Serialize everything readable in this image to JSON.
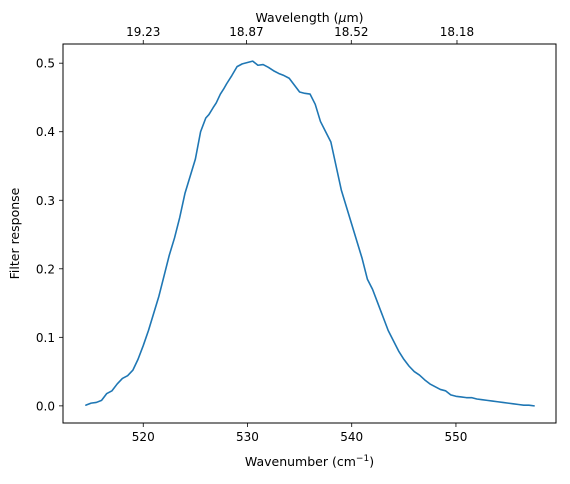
{
  "chart_data": {
    "type": "line",
    "title": "",
    "xlabel": "Wavenumber (cm",
    "xlabel_superscript": "−1",
    "xlabel_suffix": ")",
    "ylabel": "Filter response",
    "top_label_prefix": "Wavelength (",
    "top_label_mu": "μ",
    "top_label_suffix": "m)",
    "xlim": [
      512.3,
      559.6
    ],
    "ylim": [
      -0.025,
      0.528
    ],
    "x_ticks": [
      520,
      530,
      540,
      550
    ],
    "x_tick_labels": [
      "520",
      "530",
      "540",
      "550"
    ],
    "y_ticks": [
      0.0,
      0.1,
      0.2,
      0.3,
      0.4,
      0.5
    ],
    "y_tick_labels": [
      "0.0",
      "0.1",
      "0.2",
      "0.3",
      "0.4",
      "0.5"
    ],
    "top_tick_positions": [
      520.0,
      529.9,
      539.96,
      550.1
    ],
    "top_tick_labels": [
      "19.23",
      "18.87",
      "18.52",
      "18.18"
    ],
    "grid": false,
    "line_color": "#1f77b4",
    "series": [
      {
        "x": [
          514.5,
          515.0,
          515.5,
          516.0,
          516.5,
          517.0,
          517.5,
          518.0,
          518.5,
          519.0,
          519.5,
          520.0,
          520.5,
          521.0,
          521.5,
          522.0,
          522.5,
          523.0,
          523.5,
          524.0,
          524.5,
          525.0,
          525.5,
          526.0,
          526.3,
          526.7,
          527.0,
          527.4,
          527.7,
          528.0,
          528.5,
          529.0,
          529.5,
          530.0,
          530.5,
          531.0,
          531.5,
          532.0,
          532.5,
          533.0,
          533.5,
          534.0,
          534.5,
          535.0,
          535.5,
          536.0,
          536.5,
          537.0,
          537.5,
          538.0,
          538.5,
          539.0,
          539.5,
          540.0,
          540.5,
          541.0,
          541.5,
          542.0,
          542.5,
          543.0,
          543.5,
          544.0,
          544.5,
          545.0,
          545.5,
          546.0,
          546.5,
          547.0,
          547.5,
          548.0,
          548.5,
          549.0,
          549.5,
          550.0,
          550.5,
          551.0,
          551.5,
          552.0,
          552.5,
          553.0,
          553.5,
          554.0,
          554.5,
          555.0,
          555.5,
          556.0,
          556.5,
          557.0,
          557.5
        ],
        "values": [
          0.001,
          0.004,
          0.005,
          0.008,
          0.018,
          0.022,
          0.032,
          0.04,
          0.044,
          0.052,
          0.068,
          0.088,
          0.11,
          0.135,
          0.16,
          0.19,
          0.22,
          0.245,
          0.275,
          0.31,
          0.335,
          0.36,
          0.4,
          0.42,
          0.425,
          0.435,
          0.442,
          0.455,
          0.462,
          0.47,
          0.482,
          0.495,
          0.499,
          0.501,
          0.503,
          0.497,
          0.498,
          0.494,
          0.489,
          0.485,
          0.482,
          0.478,
          0.468,
          0.458,
          0.456,
          0.455,
          0.44,
          0.415,
          0.4,
          0.385,
          0.35,
          0.315,
          0.29,
          0.265,
          0.24,
          0.215,
          0.185,
          0.17,
          0.15,
          0.13,
          0.11,
          0.095,
          0.08,
          0.068,
          0.058,
          0.05,
          0.045,
          0.038,
          0.032,
          0.028,
          0.024,
          0.022,
          0.016,
          0.014,
          0.013,
          0.012,
          0.012,
          0.01,
          0.009,
          0.008,
          0.007,
          0.006,
          0.005,
          0.004,
          0.003,
          0.002,
          0.001,
          0.001,
          0.0
        ]
      }
    ]
  }
}
